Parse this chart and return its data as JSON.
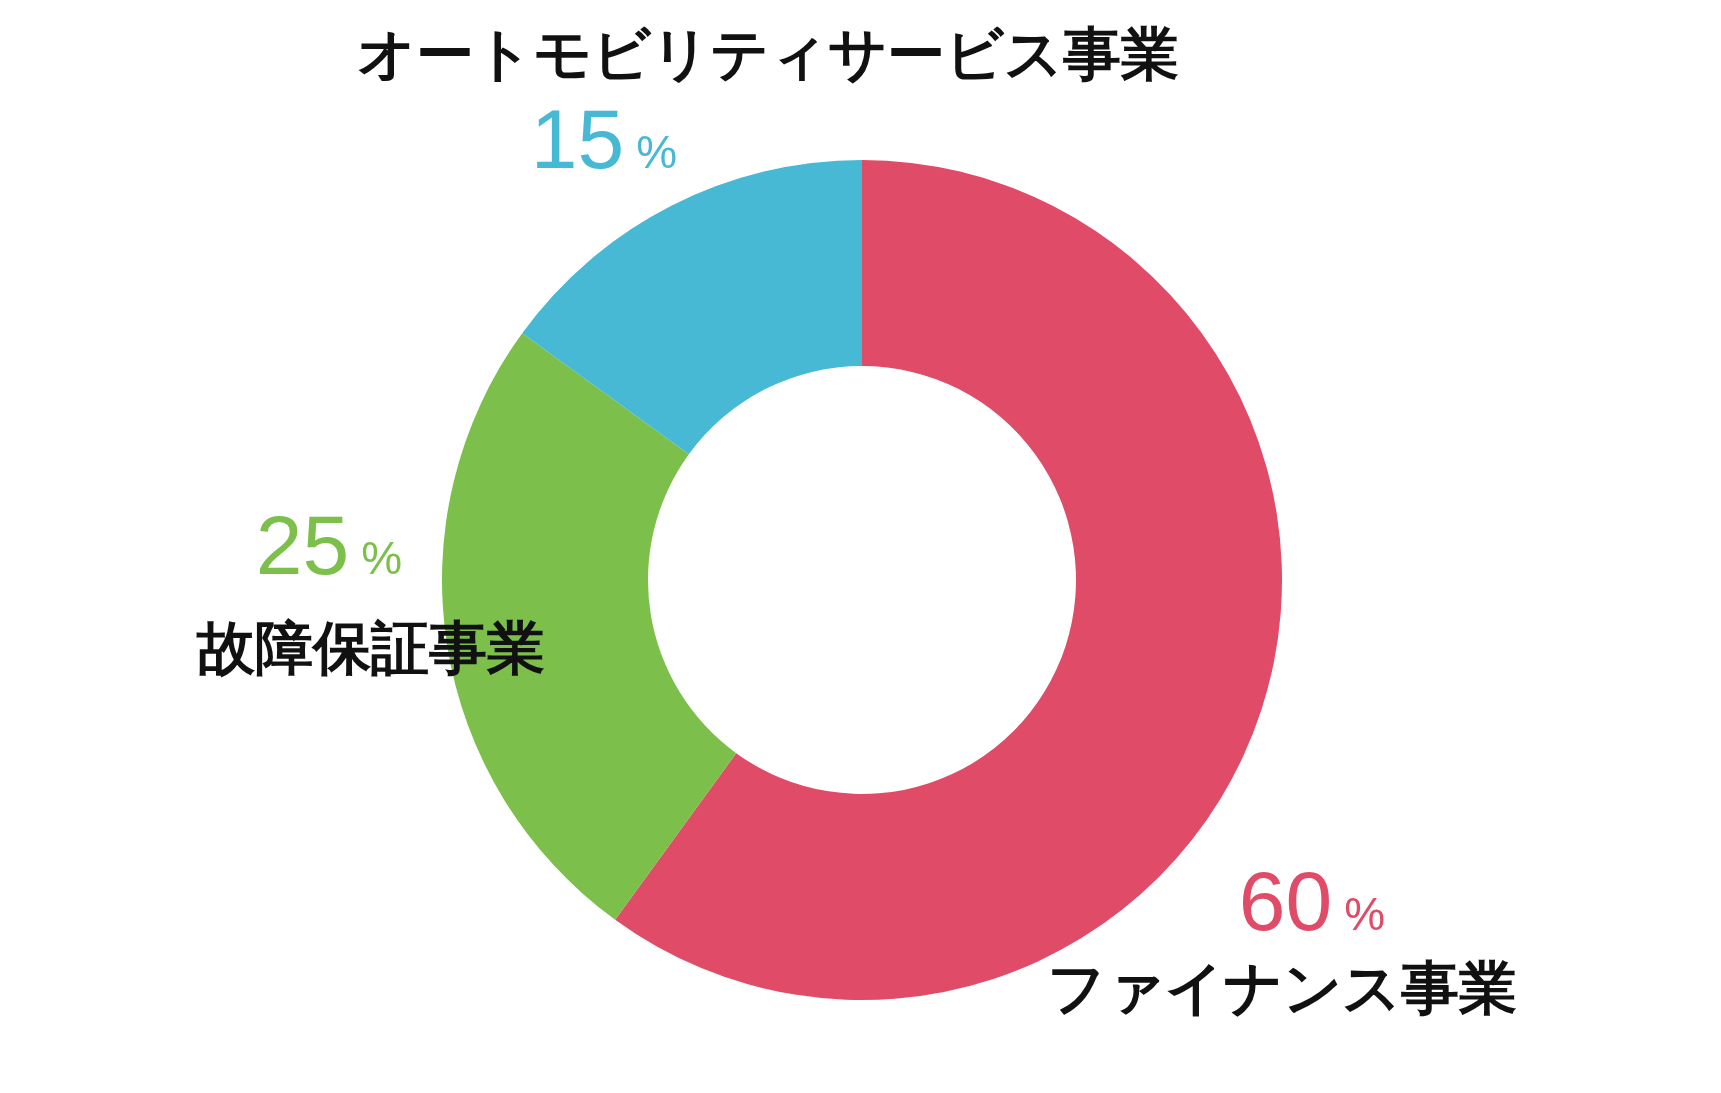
{
  "chart_data": {
    "type": "donut",
    "categories": [
      "ファイナンス事業",
      "故障保証事業",
      "オートモビリティサービス事業"
    ],
    "values": [
      60,
      25,
      15
    ],
    "colors": [
      "#e04b67",
      "#7cc04b",
      "#48b9d4"
    ],
    "value_labels": [
      "60%",
      "25%",
      "15%"
    ]
  }
}
